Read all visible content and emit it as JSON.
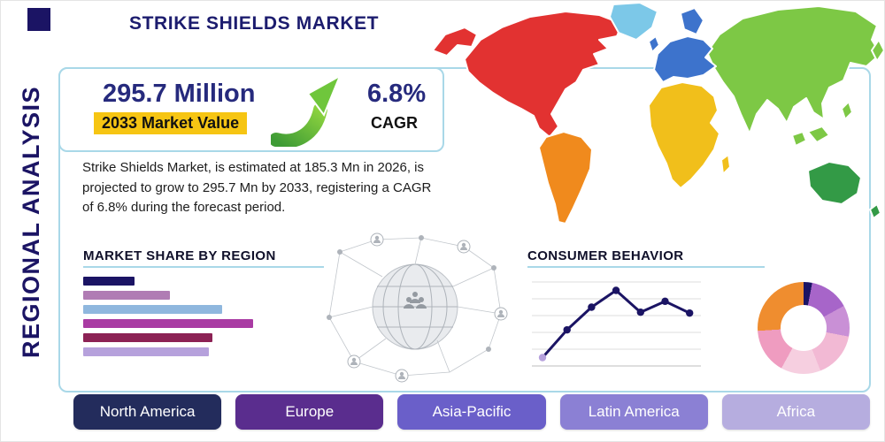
{
  "page": {
    "title": "STRIKE SHIELDS MARKET",
    "side_label": "REGIONAL ANALYSIS"
  },
  "stats": {
    "market_value": "295.7 Million",
    "market_value_label": "2033 Market Value",
    "cagr_value": "6.8%",
    "cagr_label": "CAGR",
    "description": "Strike Shields Market, is estimated at 185.3 Mn in 2026, is projected to grow to 295.7 Mn by 2033, registering a CAGR of 6.8% during the forecast period."
  },
  "sections": {
    "market_share_title": "MARKET SHARE BY REGION",
    "consumer_behavior_title": "CONSUMER BEHAVIOR"
  },
  "regions": [
    {
      "label": "North America",
      "color": "#232c5c"
    },
    {
      "label": "Europe",
      "color": "#5a2d8e"
    },
    {
      "label": "Asia-Pacific",
      "color": "#6a5fc9"
    },
    {
      "label": "Latin America",
      "color": "#8b80d4"
    },
    {
      "label": "Africa",
      "color": "#b6addf"
    }
  ],
  "map": {
    "continent_colors": {
      "north-america": "#e23231",
      "greenland": "#7cc8e8",
      "south-america": "#f08a1d",
      "europe": "#3d73cc",
      "africa": "#f1bf1b",
      "asia": "#7dc845",
      "australia": "#339a46"
    }
  },
  "chart_data": [
    {
      "type": "bar",
      "title": "MARKET SHARE BY REGION",
      "orientation": "horizontal",
      "categories": [
        "",
        "",
        "",
        "",
        "",
        ""
      ],
      "values": [
        30,
        51,
        82,
        100,
        76,
        74
      ],
      "value_scale": "relative-length-percent (no axis labels visible)",
      "colors": [
        "#1b1464",
        "#b07cb4",
        "#8fb7de",
        "#a93ba3",
        "#8c2255",
        "#b6a1dc"
      ],
      "xlabel": "",
      "ylabel": "",
      "grid": false
    },
    {
      "type": "line",
      "title": "CONSUMER BEHAVIOR",
      "x": [
        1,
        2,
        3,
        4,
        5,
        6,
        7
      ],
      "y": [
        10,
        43,
        70,
        90,
        64,
        77,
        63
      ],
      "value_scale": "relative-height-percent (no axis labels visible)",
      "line_color": "#1b1464",
      "first_marker_color": "#b6a1dc",
      "grid": true,
      "gridline_count": 6,
      "xlabel": "",
      "ylabel": ""
    },
    {
      "type": "pie",
      "donut": true,
      "labels_visible": false,
      "value_scale": "percent-estimated",
      "segments": [
        {
          "value": 3,
          "color": "#1b1464"
        },
        {
          "value": 14,
          "color": "#a765c9"
        },
        {
          "value": 11,
          "color": "#c990d6"
        },
        {
          "value": 16,
          "color": "#f2b9d4"
        },
        {
          "value": 14,
          "color": "#f6cfe0"
        },
        {
          "value": 16,
          "color": "#ef9cc0"
        },
        {
          "value": 26,
          "color": "#ef8d2f"
        }
      ]
    }
  ]
}
